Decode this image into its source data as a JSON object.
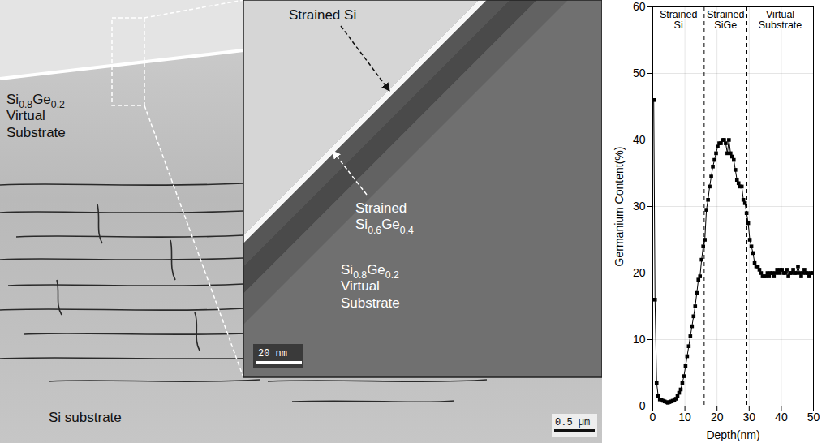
{
  "micrograph": {
    "virtual_substrate": [
      "Si0.8Ge0.2",
      "Virtual",
      "Substrate"
    ],
    "substrate": "Si substrate",
    "scale_bar": "0.5 µm",
    "inset": {
      "strained_si": "Strained Si",
      "strained_sige": [
        "Strained",
        "Si0.6Ge0.4"
      ],
      "virtual_substrate": [
        "Si0.8Ge0.2",
        "Virtual",
        "Substrate"
      ],
      "scale_bar": "20 nm"
    }
  },
  "chart_data": {
    "type": "line",
    "marker": "square",
    "line_style": "solid",
    "color": "#000000",
    "xlabel": "Depth(nm)",
    "ylabel": "Germanium Content(%)",
    "xlim": [
      0,
      50
    ],
    "ylim": [
      0,
      60
    ],
    "xticks": [
      0,
      10,
      20,
      30,
      40,
      50
    ],
    "yticks": [
      0,
      10,
      20,
      30,
      40,
      50,
      60
    ],
    "grid": true,
    "regions": [
      {
        "label": "Strained Si",
        "start": 0,
        "end": 16
      },
      {
        "label": "Strained SiGe",
        "start": 16,
        "end": 29.3
      },
      {
        "label": "Virtual Substrate",
        "start": 29.3,
        "end": 50
      }
    ],
    "x": [
      0.3,
      0.7,
      1.2,
      1.7,
      2.2,
      2.7,
      3.2,
      3.7,
      4.2,
      4.7,
      5.2,
      5.7,
      6.2,
      6.7,
      7.2,
      7.7,
      8.2,
      8.7,
      9.2,
      9.7,
      10.2,
      10.7,
      11.2,
      11.7,
      12.2,
      12.7,
      13.2,
      13.7,
      14.2,
      14.7,
      15.2,
      15.7,
      16.2,
      16.7,
      17.2,
      17.7,
      18.2,
      18.7,
      19.2,
      19.7,
      20.2,
      20.7,
      21.2,
      21.7,
      22.2,
      22.7,
      23.2,
      23.7,
      24.2,
      24.7,
      25.2,
      25.7,
      26.2,
      26.7,
      27.2,
      27.7,
      28.2,
      28.7,
      29.2,
      29.7,
      30.2,
      30.7,
      31.2,
      31.7,
      32.2,
      32.7,
      33.2,
      33.7,
      34.2,
      34.7,
      35.2,
      35.7,
      36.2,
      36.7,
      37.2,
      37.7,
      38.2,
      38.7,
      39.2,
      39.7,
      40.2,
      40.7,
      41.2,
      41.7,
      42.2,
      42.7,
      43.2,
      43.7,
      44.2,
      44.7,
      45.2,
      45.7,
      46.2,
      46.7,
      47.2,
      47.7,
      48.2,
      48.7,
      49.2,
      49.7
    ],
    "values": [
      46,
      16,
      3.5,
      1.5,
      1.0,
      1.0,
      0.8,
      0.7,
      0.6,
      0.5,
      0.6,
      0.7,
      0.8,
      0.9,
      1.1,
      1.5,
      2.0,
      2.5,
      3.5,
      4.5,
      6,
      7.5,
      9,
      10.5,
      12,
      13.5,
      15,
      17,
      19,
      19.5,
      22,
      24,
      25,
      29.5,
      31,
      33,
      34.5,
      36,
      37,
      38,
      39,
      39.5,
      39.5,
      40,
      40,
      39.5,
      38,
      40,
      38,
      37.5,
      37,
      35.5,
      34,
      33.5,
      33,
      33,
      31,
      30.5,
      29,
      27.5,
      25,
      24,
      23,
      21.5,
      21,
      21,
      20.5,
      20,
      19.5,
      19.5,
      19.5,
      20,
      19.5,
      20,
      20,
      19.5,
      20,
      20.5,
      20,
      20.5,
      20.5,
      20,
      20,
      20.5,
      19.5,
      20,
      20,
      20.5,
      20,
      20,
      21,
      20,
      19.5,
      20,
      20.5,
      20,
      20,
      19.5,
      20,
      20
    ]
  }
}
